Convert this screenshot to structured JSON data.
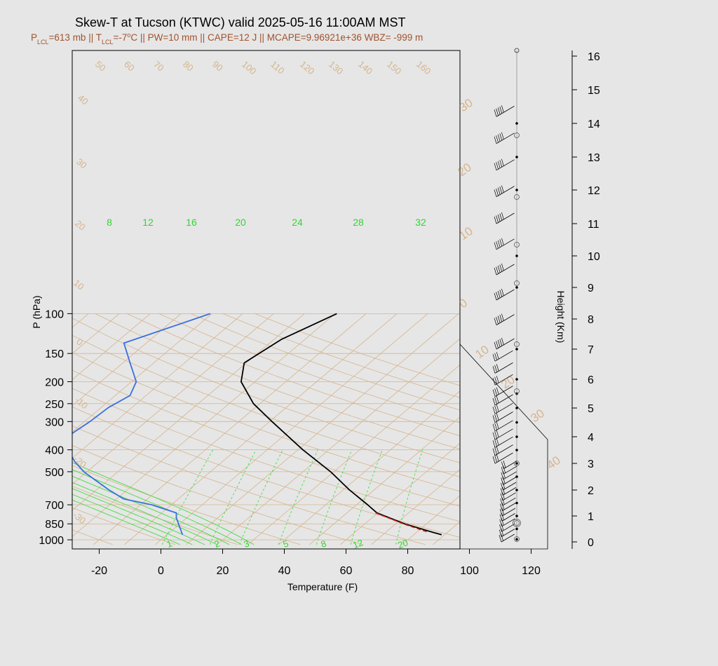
{
  "header": {
    "title": "Skew-T at Tucson (KTWC) valid 2025-05-16 11:00AM MST",
    "subtitle": "P<tspan baseline-shift='sub' font-size='9'>LCL</tspan>=613 mb || T<tspan baseline-shift='sub' font-size='9'>LCL</tspan>=-7°C || PW=10 mm || CAPE=12 J || MCAPE=9.96921e+36 WBZ= -999 m",
    "subtitle_parts": [
      "P",
      "LCL",
      "=613 mb || T",
      "LCL",
      "=-7",
      "o",
      "C || PW=10 mm || CAPE=12 J || MCAPE=9.96921e+36 WBZ= -999 m"
    ]
  },
  "colors": {
    "temperature": "#000000",
    "dewpoint": "#3a6fe0",
    "parcel": "#d02020",
    "isotherm": "#d6b48c",
    "mixing_ratio": "#44dd44",
    "frame": "#000000"
  },
  "chart_data": {
    "type": "skew-t",
    "title": "Skew-T at Tucson (KTWC) valid 2025-05-16 11:00AM MST",
    "xlabel": "Temperature (F)",
    "ylabel": "P (hPa)",
    "y2label": "Height (Km)",
    "x_ticks": [
      -20,
      0,
      20,
      40,
      60,
      80,
      100,
      120
    ],
    "p_ticks": [
      100,
      150,
      200,
      250,
      300,
      400,
      500,
      700,
      850,
      1000
    ],
    "height_ticks": [
      0,
      1,
      2,
      3,
      4,
      5,
      6,
      7,
      8,
      9,
      10,
      11,
      12,
      13,
      14,
      15,
      16
    ],
    "xlim": [
      -28,
      125
    ],
    "plim": [
      100,
      1050
    ],
    "isotherm_labels": [
      50,
      60,
      70,
      80,
      90,
      100,
      110,
      120,
      130,
      140,
      150,
      160,
      40,
      30,
      20,
      10,
      0,
      -10,
      -20,
      -30
    ],
    "isotherm_labels_right": [
      30,
      20,
      10,
      0,
      10,
      20,
      30,
      40
    ],
    "mixing_ratio_top_labels": [
      8,
      12,
      16,
      20,
      24,
      28,
      32
    ],
    "mixing_ratio_bottom_labels": [
      1,
      2,
      3,
      5,
      8,
      12,
      20
    ],
    "temperature_profile": [
      {
        "p": 100,
        "t": 57
      },
      {
        "p": 130,
        "t": 39
      },
      {
        "p": 165,
        "t": 27
      },
      {
        "p": 200,
        "t": 26
      },
      {
        "p": 250,
        "t": 30
      },
      {
        "p": 300,
        "t": 36
      },
      {
        "p": 400,
        "t": 46
      },
      {
        "p": 500,
        "t": 55
      },
      {
        "p": 600,
        "t": 61
      },
      {
        "p": 700,
        "t": 67
      },
      {
        "p": 760,
        "t": 70
      },
      {
        "p": 850,
        "t": 79
      },
      {
        "p": 925,
        "t": 88
      },
      {
        "p": 950,
        "t": 91
      }
    ],
    "dewpoint_profile": [
      {
        "p": 100,
        "t": 16
      },
      {
        "p": 135,
        "t": -12
      },
      {
        "p": 165,
        "t": -10
      },
      {
        "p": 200,
        "t": -8
      },
      {
        "p": 230,
        "t": -10
      },
      {
        "p": 260,
        "t": -17
      },
      {
        "p": 300,
        "t": -23
      },
      {
        "p": 340,
        "t": -29
      },
      {
        "p": 380,
        "t": -31
      },
      {
        "p": 450,
        "t": -28
      },
      {
        "p": 500,
        "t": -25
      },
      {
        "p": 600,
        "t": -17
      },
      {
        "p": 660,
        "t": -12
      },
      {
        "p": 700,
        "t": -3
      },
      {
        "p": 760,
        "t": 5
      },
      {
        "p": 800,
        "t": 5
      },
      {
        "p": 950,
        "t": 7
      }
    ],
    "parcel_profile": [
      {
        "p": 760,
        "t": 70
      },
      {
        "p": 850,
        "t": 79
      },
      {
        "p": 925,
        "t": 87
      }
    ],
    "wind_barb_heights_km": [
      0,
      0.2,
      0.4,
      0.6,
      0.8,
      1.0,
      1.2,
      1.4,
      1.6,
      1.8,
      2.0,
      2.2,
      2.4,
      2.6,
      2.8,
      3.0,
      3.3,
      3.6,
      3.9,
      4.2,
      4.5,
      4.8,
      5.1,
      5.4,
      5.8,
      6.2,
      6.6,
      7.0,
      7.8,
      8.6,
      9.4,
      10.2,
      11.0,
      11.8,
      12.6,
      13.4,
      14.2
    ],
    "hodograph_markers_km": [
      0.1,
      0.5,
      1.0,
      1.5,
      2.0,
      2.5,
      3.0,
      3.5,
      4.0,
      4.5,
      5.0,
      5.5,
      6.0,
      7.0,
      9.0,
      10.0,
      12.0,
      13.0,
      14.0,
      16.0
    ]
  }
}
